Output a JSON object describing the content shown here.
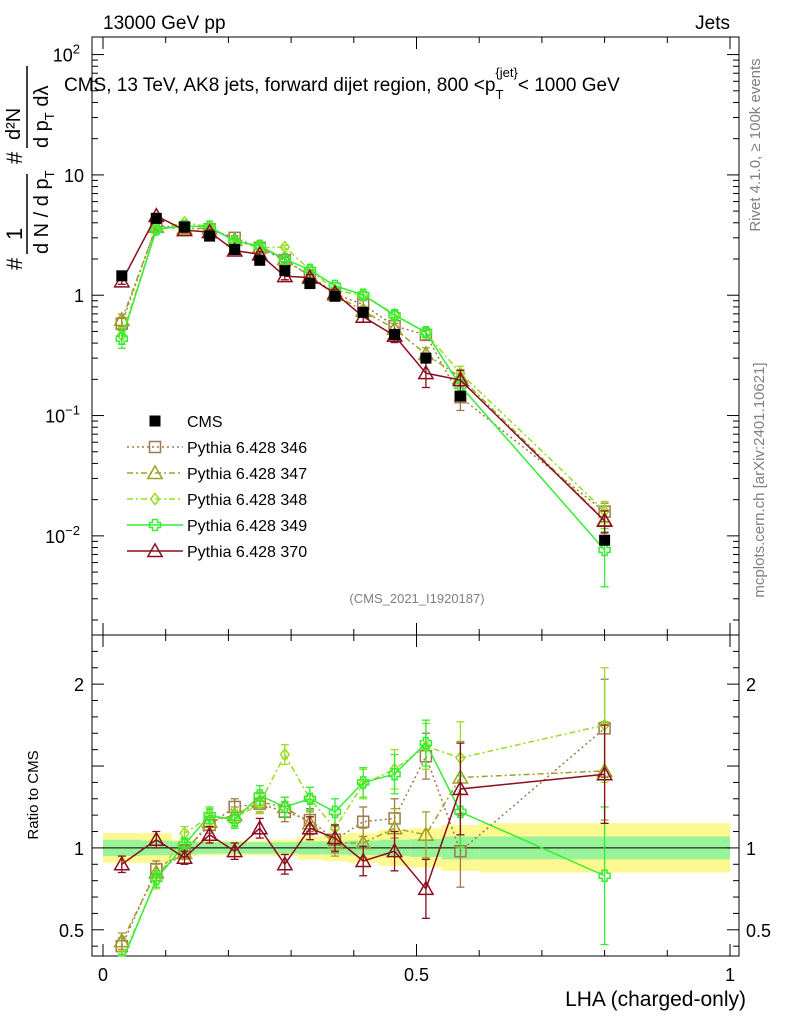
{
  "header": {
    "left": "13000 GeV pp",
    "right": "Jets"
  },
  "side": {
    "rivet": "Rivet 4.1.0, ≥ 100k events",
    "mcplots": "mcplots.cern.ch [arXiv:2401.10621]"
  },
  "chart_data": {
    "type": "line",
    "title": "CMS, 13 TeV, AK8 jets, forward dijet region, 800 < p_T^{jet} < 1000 GeV",
    "title_parts": {
      "main": "CMS, 13 TeV, AK8 jets, forward dijet region, 800 <p",
      "sub": "T",
      "sup": "{jet",
      "sup2": "}",
      "tail": "< 1000 GeV"
    },
    "analysis_id": "(CMS_2021_I1920187)",
    "xlabel": "LHA (charged-only)",
    "ylabel_top": {
      "frac1": "1",
      "frac1_den": "d N / d p",
      "frac1_den_sub": "T",
      "hash": "#",
      "frac2_num": "d²N",
      "frac2_den": "d p",
      "frac2_den_sub": "T",
      "frac2_den_tail": " dλ"
    },
    "ylabel_ratio": "Ratio to CMS",
    "xlim": [
      0,
      1
    ],
    "ylim_main": [
      0.0015,
      140
    ],
    "yscale_main": "log",
    "ylim_ratio": [
      0.34,
      2.3
    ],
    "x_ticks": [
      {
        "v": 0,
        "label": "0"
      },
      {
        "v": 0.5,
        "label": "0.5"
      },
      {
        "v": 1,
        "label": "1"
      }
    ],
    "y_ticks_main": [
      {
        "v": 0.01,
        "base": "10",
        "exp": "−2"
      },
      {
        "v": 0.1,
        "base": "10",
        "exp": "−1"
      },
      {
        "v": 1,
        "base": "1",
        "exp": ""
      },
      {
        "v": 10,
        "base": "10",
        "exp": ""
      },
      {
        "v": 100,
        "base": "10",
        "exp": "2"
      }
    ],
    "y_ticks_ratio": [
      {
        "v": 0.5,
        "label": "0.5"
      },
      {
        "v": 1,
        "label": "1"
      },
      {
        "v": 2,
        "label": "2"
      }
    ],
    "x": [
      0.03,
      0.085,
      0.13,
      0.17,
      0.21,
      0.25,
      0.29,
      0.33,
      0.37,
      0.415,
      0.465,
      0.515,
      0.57,
      0.8
    ],
    "data": {
      "name": "CMS",
      "values": [
        1.45,
        4.35,
        3.7,
        3.1,
        2.4,
        1.95,
        1.6,
        1.25,
        0.98,
        0.72,
        0.47,
        0.3,
        0.145,
        0.0092
      ],
      "band_bins": [
        {
          "lo": 0.0,
          "hi": 0.06,
          "inner": 0.05,
          "outer": 0.09
        },
        {
          "lo": 0.06,
          "hi": 0.11,
          "inner": 0.045,
          "outer": 0.09
        },
        {
          "lo": 0.11,
          "hi": 0.15,
          "inner": 0.04,
          "outer": 0.05
        },
        {
          "lo": 0.15,
          "hi": 0.19,
          "inner": 0.035,
          "outer": 0.045
        },
        {
          "lo": 0.19,
          "hi": 0.23,
          "inner": 0.035,
          "outer": 0.045
        },
        {
          "lo": 0.23,
          "hi": 0.27,
          "inner": 0.035,
          "outer": 0.045
        },
        {
          "lo": 0.27,
          "hi": 0.31,
          "inner": 0.035,
          "outer": 0.05
        },
        {
          "lo": 0.31,
          "hi": 0.35,
          "inner": 0.04,
          "outer": 0.07
        },
        {
          "lo": 0.35,
          "hi": 0.39,
          "inner": 0.04,
          "outer": 0.08
        },
        {
          "lo": 0.39,
          "hi": 0.44,
          "inner": 0.045,
          "outer": 0.09
        },
        {
          "lo": 0.44,
          "hi": 0.49,
          "inner": 0.05,
          "outer": 0.11
        },
        {
          "lo": 0.49,
          "hi": 0.54,
          "inner": 0.055,
          "outer": 0.12
        },
        {
          "lo": 0.54,
          "hi": 0.6,
          "inner": 0.07,
          "outer": 0.14
        },
        {
          "lo": 0.6,
          "hi": 1.0,
          "inner": 0.07,
          "outer": 0.15
        }
      ]
    },
    "series": [
      {
        "name": "Pythia 6.428 346",
        "color": "#a0784a",
        "marker": "square",
        "dash": "2,3",
        "ratio": [
          0.4,
          0.87,
          0.98,
          1.14,
          1.25,
          1.27,
          1.22,
          1.17,
          1.05,
          1.16,
          1.18,
          1.56,
          0.98,
          1.73
        ],
        "err": [
          0.05,
          0.05,
          0.04,
          0.05,
          0.05,
          0.06,
          0.06,
          0.07,
          0.08,
          0.09,
          0.12,
          0.14,
          0.22,
          0.3
        ]
      },
      {
        "name": "Pythia 6.428 347",
        "color": "#a0a029",
        "marker": "triangle",
        "dash": "6,3,2,3",
        "ratio": [
          0.43,
          0.85,
          0.97,
          1.16,
          1.2,
          1.28,
          1.25,
          1.15,
          1.03,
          1.03,
          1.12,
          1.08,
          1.43,
          1.47
        ],
        "err": [
          0.05,
          0.05,
          0.04,
          0.05,
          0.05,
          0.06,
          0.06,
          0.07,
          0.08,
          0.09,
          0.12,
          0.14,
          0.22,
          0.3
        ]
      },
      {
        "name": "Pythia 6.428 348",
        "color": "#99dd22",
        "marker": "diamond",
        "dash": "6,3,2,3",
        "ratio": [
          0.32,
          0.8,
          1.09,
          1.19,
          1.18,
          1.27,
          1.57,
          1.3,
          1.12,
          1.39,
          1.48,
          1.62,
          1.55,
          1.75
        ],
        "err": [
          0.05,
          0.05,
          0.04,
          0.05,
          0.05,
          0.06,
          0.06,
          0.07,
          0.08,
          0.09,
          0.12,
          0.14,
          0.22,
          0.35
        ]
      },
      {
        "name": "Pythia 6.428 349",
        "color": "#33ee33",
        "marker": "cross",
        "dash": "",
        "ratio": [
          0.3,
          0.81,
          1.02,
          1.2,
          1.17,
          1.32,
          1.25,
          1.3,
          1.22,
          1.4,
          1.45,
          1.64,
          1.22,
          0.83
        ],
        "err": [
          0.05,
          0.05,
          0.04,
          0.05,
          0.05,
          0.06,
          0.06,
          0.07,
          0.08,
          0.09,
          0.12,
          0.14,
          0.22,
          0.42
        ]
      },
      {
        "name": "Pythia 6.428 370",
        "color": "#8b0d1e",
        "marker": "triangle-open",
        "dash": "",
        "ratio": [
          0.9,
          1.05,
          0.94,
          1.08,
          0.98,
          1.12,
          0.9,
          1.12,
          1.06,
          0.92,
          0.98,
          0.75,
          1.36,
          1.45
        ],
        "err": [
          0.05,
          0.05,
          0.04,
          0.05,
          0.05,
          0.06,
          0.06,
          0.07,
          0.08,
          0.09,
          0.12,
          0.18,
          0.28,
          0.3
        ]
      }
    ]
  }
}
